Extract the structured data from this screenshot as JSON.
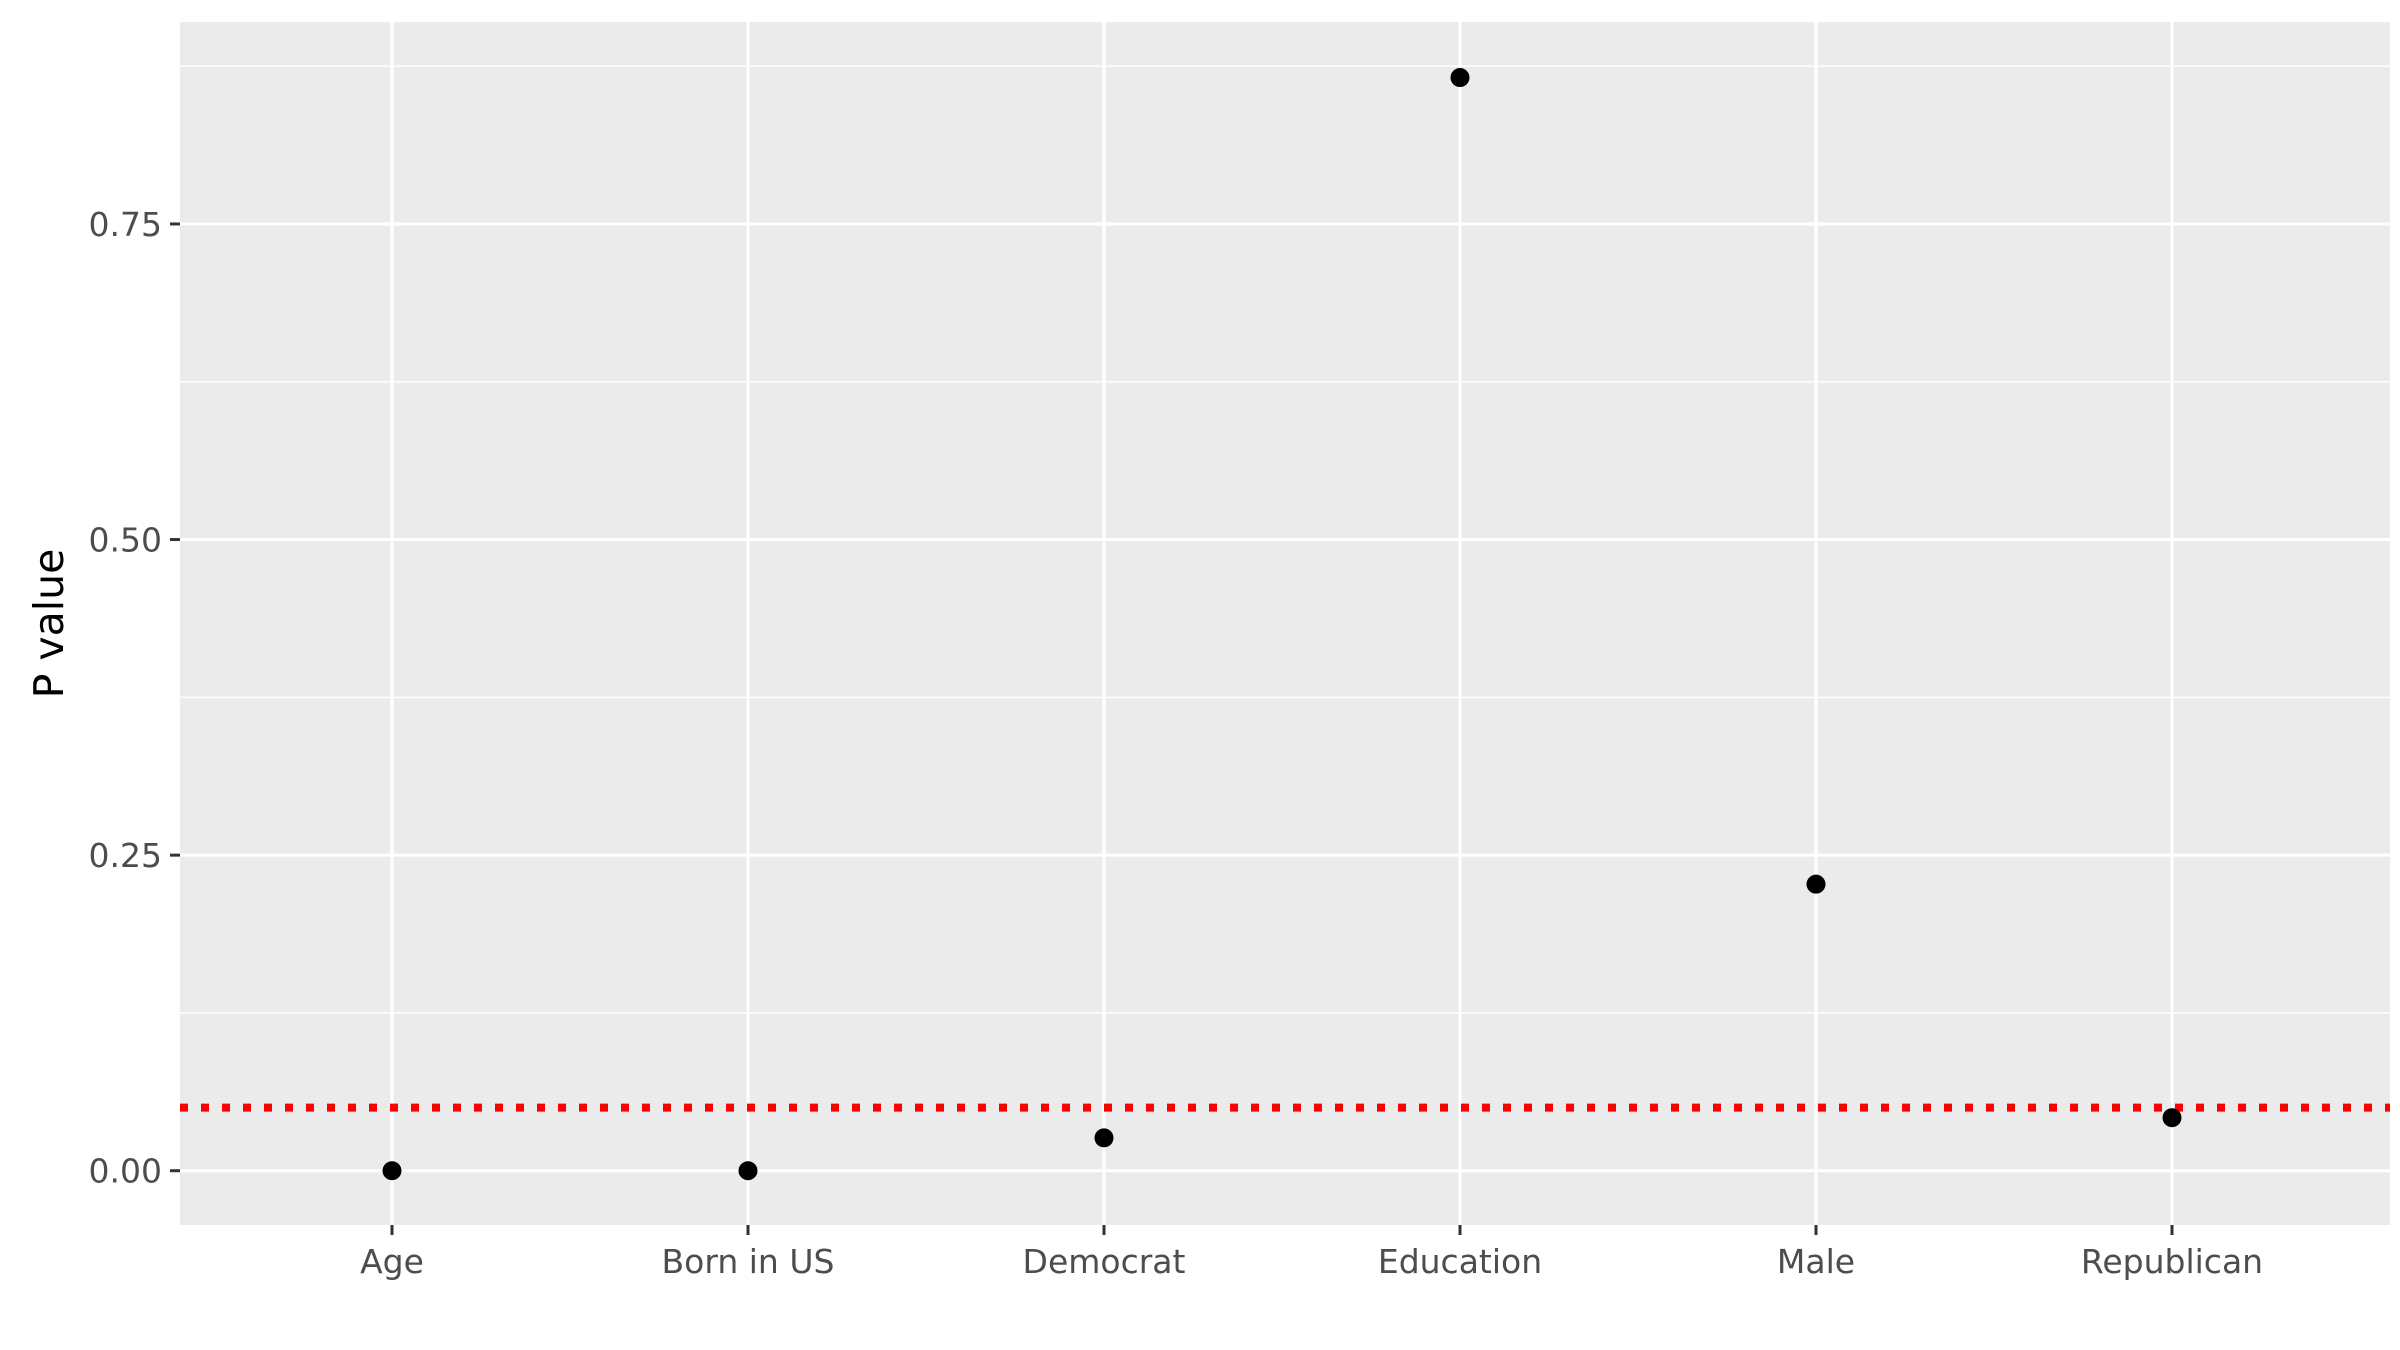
{
  "chart_data": {
    "type": "scatter",
    "categories": [
      "Age",
      "Born in US",
      "Democrat",
      "Education",
      "Male",
      "Republican"
    ],
    "values": [
      0.0,
      0.0,
      0.026,
      0.866,
      0.227,
      0.042
    ],
    "xlabel": "",
    "ylabel": "P value",
    "ylim": [
      -0.043,
      0.91
    ],
    "yticks": [
      0.0,
      0.25,
      0.5,
      0.75
    ],
    "ytick_labels": [
      "0.00",
      "0.25",
      "0.50",
      "0.75"
    ],
    "reference_line": {
      "y": 0.05,
      "style": "dotted",
      "color": "#ff0000"
    },
    "grid": true,
    "panel_color": "#ebebeb",
    "grid_color": "#ffffff",
    "point_color": "#000000"
  }
}
